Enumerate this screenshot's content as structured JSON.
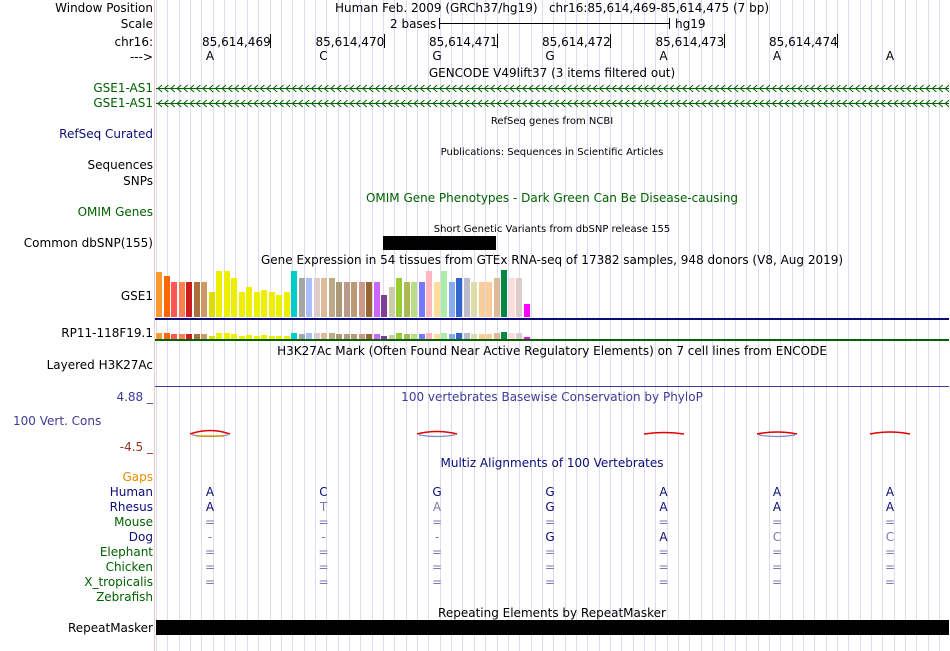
{
  "header": {
    "window_position_label": "Window Position",
    "scale_label": "Scale",
    "chrom_label": "chr16:",
    "arrow_label": "--->",
    "assembly_title": "Human Feb. 2009 (GRCh37/hg19)   chr16:85,614,469-85,614,475 (7 bp)",
    "scale_text": "2 bases",
    "scale_db": "hg19",
    "positions": [
      "85,614,469",
      "85,614,470",
      "85,614,471",
      "85,614,472",
      "85,614,473",
      "85,614,474"
    ],
    "bases": [
      "A",
      "C",
      "G",
      "G",
      "A",
      "A",
      "A"
    ]
  },
  "tracks": {
    "gencode": {
      "title": "GENCODE V49lift37 (3 items filtered out)",
      "items": [
        "GSE1-AS1",
        "GSE1-AS1"
      ]
    },
    "refseq": {
      "label": "RefSeq Curated",
      "title": "RefSeq genes from NCBI"
    },
    "publications": {
      "label": "Sequences",
      "title": "Publications: Sequences in Scientific Articles"
    },
    "snps": {
      "label": "SNPs"
    },
    "omim": {
      "label": "OMIM Genes",
      "title": "OMIM Gene Phenotypes - Dark Green Can Be Disease-causing"
    },
    "dbsnp": {
      "label": "Common dbSNP(155)",
      "title": "Short Genetic Variants from dbSNP release 155"
    },
    "gtex": {
      "title": "Gene Expression in 54 tissues from GTEx RNA-seq of 17382 samples, 948 donors (V8, Aug 2019)",
      "gene1": "GSE1",
      "gene2": "RP11-118F19.1"
    },
    "h3k27ac": {
      "label": "Layered H3K27Ac",
      "title": "H3K27Ac Mark (Often Found Near Active Regulatory Elements) on 7 cell lines from ENCODE"
    },
    "phylop": {
      "label": "100 Vert. Cons",
      "title": "100 vertebrates Basewise Conservation by PhyloP",
      "max": "4.88 _",
      "min": "-4.5 _"
    },
    "gaps": {
      "label": "Gaps"
    },
    "multiz": {
      "title": "Multiz Alignments of 100 Vertebrates",
      "species": [
        {
          "name": "Human",
          "bases": [
            "A",
            "C",
            "G",
            "G",
            "A",
            "A",
            "A"
          ]
        },
        {
          "name": "Rhesus",
          "bases": [
            "A",
            "T",
            "A",
            "G",
            "A",
            "A",
            "A"
          ]
        },
        {
          "name": "Mouse",
          "bases": [
            "=",
            "=",
            "=",
            "=",
            "=",
            "=",
            "="
          ]
        },
        {
          "name": "Dog",
          "bases": [
            "-",
            "-",
            "-",
            "G",
            "A",
            "C",
            "C"
          ]
        },
        {
          "name": "Elephant",
          "bases": [
            "=",
            "=",
            "=",
            "=",
            "=",
            "=",
            "="
          ]
        },
        {
          "name": "Chicken",
          "bases": [
            "=",
            "=",
            "=",
            "=",
            "=",
            "=",
            "="
          ]
        },
        {
          "name": "X_tropicalis",
          "bases": [
            "=",
            "=",
            "=",
            "=",
            "=",
            "=",
            "="
          ]
        },
        {
          "name": "Zebrafish",
          "bases": []
        }
      ]
    },
    "repeatmasker": {
      "label": "RepeatMasker",
      "title": "Repeating Elements by RepeatMasker"
    }
  },
  "colors": {
    "gencode_green": "#006100",
    "refseq_navy": "#0c0c78",
    "omim_green": "#006100",
    "phylop_blue": "#3c3c96",
    "phylop_red": "#96321e",
    "gaps_orange": "#e68c00",
    "species_navy": "#0c0c78",
    "species_green": "#006100"
  },
  "gtex_bars": [
    {
      "c": "#ff9933",
      "v": 0.95
    },
    {
      "c": "#ff6600",
      "v": 0.88
    },
    {
      "c": "#ff5555",
      "v": 0.74
    },
    {
      "c": "#ff7f50",
      "v": 0.74
    },
    {
      "c": "#cc1c1c",
      "v": 0.74
    },
    {
      "c": "#aa6f3c",
      "v": 0.74
    },
    {
      "c": "#cc9966",
      "v": 0.74
    },
    {
      "c": "#dddd00",
      "v": 0.53
    },
    {
      "c": "#eeee00",
      "v": 0.98
    },
    {
      "c": "#eeee00",
      "v": 0.98
    },
    {
      "c": "#eeee00",
      "v": 0.82
    },
    {
      "c": "#eeee00",
      "v": 0.53
    },
    {
      "c": "#eeee00",
      "v": 0.63
    },
    {
      "c": "#eeee00",
      "v": 0.53
    },
    {
      "c": "#eeee00",
      "v": 0.58
    },
    {
      "c": "#eeee00",
      "v": 0.53
    },
    {
      "c": "#eeee00",
      "v": 0.47
    },
    {
      "c": "#eeee00",
      "v": 0.53
    },
    {
      "c": "#00cccc",
      "v": 0.98
    },
    {
      "c": "#a6a6a6",
      "v": 0.82
    },
    {
      "c": "#aabbff",
      "v": 0.84
    },
    {
      "c": "#ddcccc",
      "v": 0.84
    },
    {
      "c": "#ddbb99",
      "v": 0.84
    },
    {
      "c": "#bbaa88",
      "v": 0.84
    },
    {
      "c": "#aa9977",
      "v": 0.74
    },
    {
      "c": "#bb9988",
      "v": 0.74
    },
    {
      "c": "#bb9977",
      "v": 0.74
    },
    {
      "c": "#cc9988",
      "v": 0.74
    },
    {
      "c": "#996633",
      "v": 0.74
    },
    {
      "c": "#cc66ff",
      "v": 0.74
    },
    {
      "c": "#7f3f98",
      "v": 0.47
    },
    {
      "c": "#ccccaa",
      "v": 0.63
    },
    {
      "c": "#99cc33",
      "v": 0.84
    },
    {
      "c": "#aabb55",
      "v": 0.74
    },
    {
      "c": "#bbdd88",
      "v": 0.74
    },
    {
      "c": "#7777ff",
      "v": 0.74
    },
    {
      "c": "#ffb6c1",
      "v": 0.98
    },
    {
      "c": "#ffdd99",
      "v": 0.74
    },
    {
      "c": "#aaeeaa",
      "v": 0.98
    },
    {
      "c": "#88aaee",
      "v": 0.74
    },
    {
      "c": "#3366cc",
      "v": 0.84
    },
    {
      "c": "#bbbbcc",
      "v": 0.84
    },
    {
      "c": "#ddddaa",
      "v": 0.74
    },
    {
      "c": "#ffcc99",
      "v": 0.74
    },
    {
      "c": "#ffcc99",
      "v": 0.74
    },
    {
      "c": "#ddbb99",
      "v": 0.84
    },
    {
      "c": "#008844",
      "v": 1.0
    },
    {
      "c": "#ffdddd",
      "v": 0.84
    },
    {
      "c": "#ddcccc",
      "v": 0.84
    },
    {
      "c": "#ff00ff",
      "v": 0.28
    }
  ]
}
